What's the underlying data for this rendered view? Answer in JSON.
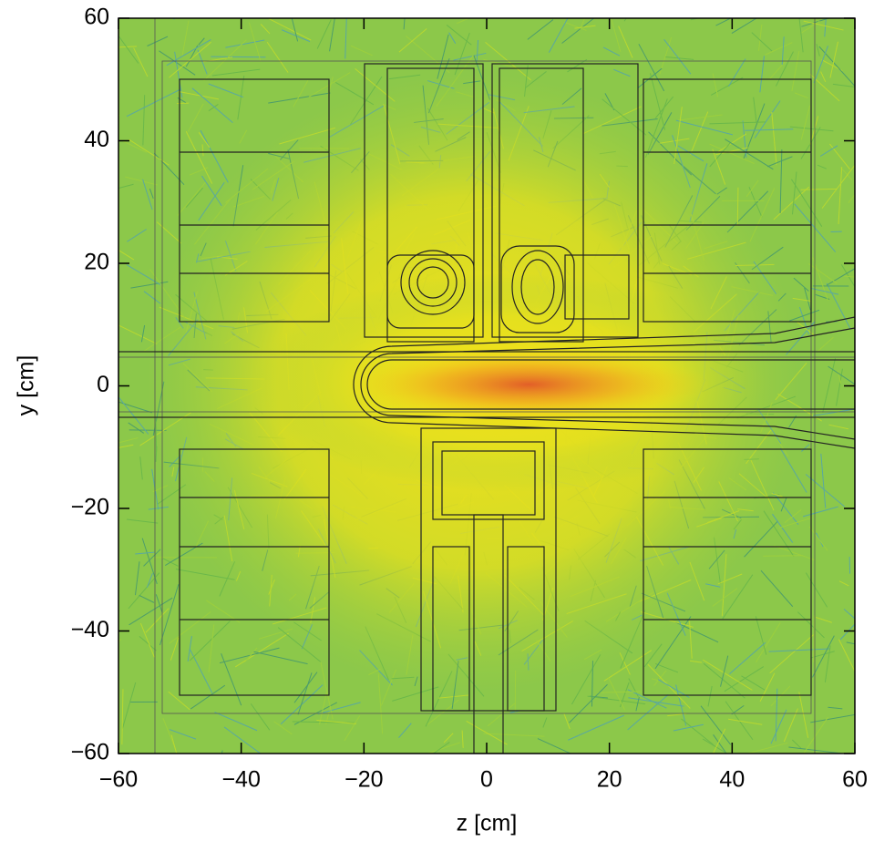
{
  "chart_data": {
    "type": "image",
    "xlabel": "z [cm]",
    "ylabel": "y [cm]",
    "xlim": [
      -60,
      60
    ],
    "ylim": [
      -60,
      60
    ],
    "xticks": [
      {
        "value": -60,
        "label": "−60"
      },
      {
        "value": -40,
        "label": "−40"
      },
      {
        "value": -20,
        "label": "−20"
      },
      0,
      20,
      40,
      60
    ],
    "yticks": [
      {
        "value": -60,
        "label": "−60"
      },
      {
        "value": -40,
        "label": "−40"
      },
      {
        "value": -20,
        "label": "−20"
      },
      0,
      20,
      40,
      60
    ]
  }
}
